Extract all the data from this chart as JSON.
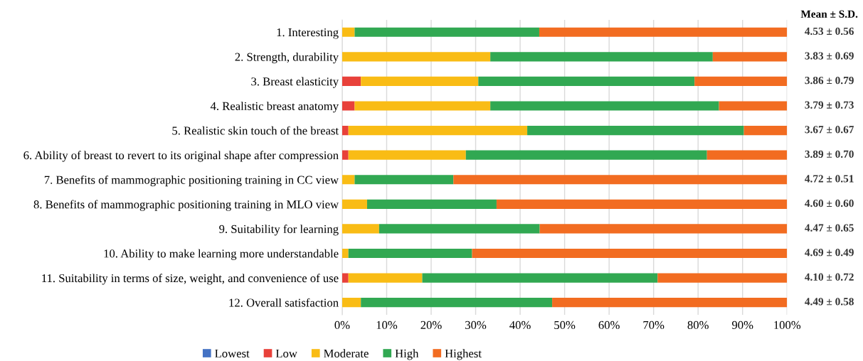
{
  "chart_data": {
    "type": "bar",
    "orientation": "horizontal",
    "stacked": true,
    "categories": [
      "1. Interesting",
      "2. Strength, durability",
      "3. Breast elasticity",
      "4. Realistic breast anatomy",
      "5. Realistic skin touch of the breast",
      "6. Ability of breast to revert to its original shape after compression",
      "7. Benefits of mammographic positioning training in CC view",
      "8. Benefits of mammographic positioning training in MLO view",
      "9. Suitability for learning",
      "10. Ability to make learning more understandable",
      "11. Suitability in terms of size, weight, and convenience of use",
      "12. Overall satisfaction"
    ],
    "series": [
      {
        "name": "Lowest",
        "color": "#4472c4",
        "values": [
          0,
          0,
          0,
          0,
          0,
          0,
          0,
          0,
          0,
          0,
          0,
          0
        ]
      },
      {
        "name": "Low",
        "color": "#e8413a",
        "values": [
          0,
          0,
          4.2,
          2.8,
          1.4,
          1.4,
          0,
          0,
          0,
          0,
          1.4,
          0
        ]
      },
      {
        "name": "Moderate",
        "color": "#f9bc15",
        "values": [
          2.8,
          33.3,
          26.4,
          30.5,
          40.2,
          26.4,
          2.8,
          5.6,
          8.3,
          1.4,
          16.6,
          4.2
        ]
      },
      {
        "name": "High",
        "color": "#31a852",
        "values": [
          41.5,
          50.0,
          48.6,
          51.4,
          48.7,
          54.2,
          22.2,
          29.1,
          36.1,
          27.8,
          52.9,
          43.0
        ]
      },
      {
        "name": "Highest",
        "color": "#f26c21",
        "values": [
          55.7,
          16.7,
          20.8,
          15.3,
          9.7,
          18.0,
          75.0,
          65.3,
          55.6,
          70.8,
          29.1,
          52.8
        ]
      }
    ],
    "xlim": [
      0,
      100
    ],
    "xticks": [
      {
        "value": 0,
        "label": "0%"
      },
      {
        "value": 10,
        "label": "10%"
      },
      {
        "value": 20,
        "label": "20%"
      },
      {
        "value": 30,
        "label": "30%"
      },
      {
        "value": 40,
        "label": "40%"
      },
      {
        "value": 50,
        "label": "50%"
      },
      {
        "value": 60,
        "label": "60%"
      },
      {
        "value": 70,
        "label": "70%"
      },
      {
        "value": 80,
        "label": "80%"
      },
      {
        "value": 90,
        "label": "90%"
      },
      {
        "value": 100,
        "label": "100%"
      }
    ],
    "grid": "x",
    "legend": "bottom",
    "annotations": [
      "Mean ± S.D.",
      "4.53 ± 0.56",
      "3.83 ± 0.69",
      "3.86 ± 0.79",
      "3.79 ± 0.73",
      "3.67 ± 0.67",
      "3.89 ± 0.70",
      "4.72 ± 0.51",
      "4.60 ± 0.60",
      "4.47 ± 0.65",
      "4.69 ± 0.49",
      "4.10 ± 0.72",
      "4.49 ± 0.58"
    ]
  }
}
